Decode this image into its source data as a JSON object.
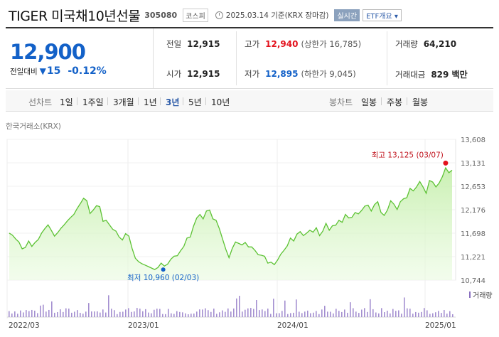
{
  "header": {
    "title": "TIGER 미국채10년선물",
    "code": "305080",
    "market": "코스피",
    "basis": "2025.03.14 기준(KRX 장마감)",
    "realtime_label": "실시간",
    "etf_label": "ETF개요"
  },
  "price": {
    "current": "12,900",
    "change_label": "전일대비",
    "change_abs": "15",
    "change_rate": "-0.12%"
  },
  "stats": {
    "prev_close": {
      "label": "전일",
      "value": "12,915"
    },
    "open": {
      "label": "시가",
      "value": "12,915"
    },
    "high": {
      "label": "고가",
      "value": "12,940",
      "extra": "(상한가 16,785)"
    },
    "low": {
      "label": "저가",
      "value": "12,895",
      "extra": "(하한가 9,045)"
    },
    "volume": {
      "label": "거래량",
      "value": "64,210"
    },
    "amount": {
      "label": "거래대금",
      "value": "829 백만"
    }
  },
  "tabs": {
    "chart_label": "선차트",
    "periods": [
      "1일",
      "1주일",
      "3개월",
      "1년",
      "3년",
      "5년",
      "10년"
    ],
    "selected": "3년",
    "candle_label": "봉차트",
    "candles": [
      "일봉",
      "주봉",
      "월봉"
    ]
  },
  "source": "한국거래소(KRX)",
  "colors": {
    "up": "#e3131e",
    "down": "#1361c8",
    "line": "#5cc233",
    "volume": "#a48fd0"
  },
  "chart_data": {
    "type": "area",
    "y_ticks": [
      13608,
      13131,
      12653,
      12176,
      11698,
      11221,
      10744
    ],
    "ylim": [
      10744,
      13608
    ],
    "x_ticks": [
      "2022/03",
      "2023/01",
      "2024/01",
      "2025/01"
    ],
    "high_label": "최고 13,125 (03/07)",
    "low_label": "최저 10,960 (02/03)",
    "high_value": 13125,
    "low_value": 10960,
    "volume_label": "거래량",
    "values": [
      11700,
      11660,
      11580,
      11520,
      11380,
      11410,
      11540,
      11430,
      11510,
      11570,
      11700,
      11790,
      11870,
      11760,
      11640,
      11710,
      11800,
      11870,
      11950,
      12020,
      12080,
      12200,
      12300,
      12410,
      12360,
      12100,
      12170,
      12260,
      12240,
      11940,
      11960,
      11870,
      11780,
      11740,
      11620,
      11560,
      11690,
      11640,
      11390,
      11190,
      11120,
      11080,
      11050,
      11020,
      10990,
      10960,
      11000,
      11090,
      11030,
      11070,
      11170,
      11230,
      11240,
      11340,
      11430,
      11600,
      11620,
      11840,
      12010,
      12080,
      11990,
      12150,
      12170,
      11990,
      11960,
      11790,
      11580,
      11370,
      11200,
      11390,
      11520,
      11490,
      11460,
      11510,
      11420,
      11420,
      11350,
      11260,
      11250,
      11230,
      11090,
      11110,
      11060,
      11150,
      11270,
      11350,
      11440,
      11600,
      11540,
      11680,
      11730,
      11650,
      11700,
      11760,
      11720,
      11810,
      11650,
      11740,
      11900,
      11760,
      11850,
      11860,
      11960,
      11920,
      12080,
      12010,
      12020,
      12120,
      12090,
      12160,
      12250,
      12270,
      12150,
      12280,
      12340,
      12120,
      12060,
      12170,
      12360,
      12290,
      12180,
      12340,
      12400,
      12420,
      12610,
      12560,
      12640,
      12750,
      12640,
      12510,
      12770,
      12740,
      12640,
      12720,
      12850,
      13030,
      12930,
      12980
    ]
  }
}
